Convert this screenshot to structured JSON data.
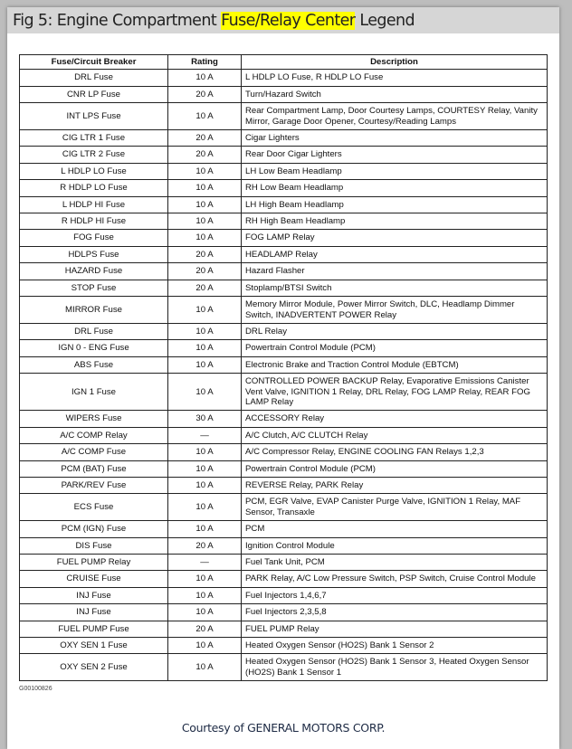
{
  "title": {
    "before": "Fig 5: Engine Compartment ",
    "highlight": "Fuse/Relay Center",
    "after": " Legend",
    "highlight_color": "#ffff00"
  },
  "table": {
    "headers": [
      "Fuse/Circuit Breaker",
      "Rating",
      "Description"
    ],
    "rows": [
      [
        "DRL Fuse",
        "10 A",
        "L HDLP LO Fuse, R HDLP LO Fuse"
      ],
      [
        "CNR LP Fuse",
        "20 A",
        "Turn/Hazard Switch"
      ],
      [
        "INT LPS Fuse",
        "10 A",
        "Rear Compartment Lamp, Door Courtesy Lamps, COURTESY Relay, Vanity Mirror, Garage Door Opener, Courtesy/Reading Lamps"
      ],
      [
        "CIG LTR 1 Fuse",
        "20 A",
        "Cigar Lighters"
      ],
      [
        "CIG LTR 2 Fuse",
        "20 A",
        "Rear Door Cigar Lighters"
      ],
      [
        "L HDLP LO Fuse",
        "10 A",
        "LH Low Beam Headlamp"
      ],
      [
        "R HDLP LO Fuse",
        "10 A",
        "RH Low Beam Headlamp"
      ],
      [
        "L HDLP HI Fuse",
        "10 A",
        "LH High Beam Headlamp"
      ],
      [
        "R HDLP HI Fuse",
        "10 A",
        "RH High Beam Headlamp"
      ],
      [
        "FOG Fuse",
        "10 A",
        "FOG LAMP Relay"
      ],
      [
        "HDLPS Fuse",
        "20 A",
        "HEADLAMP Relay"
      ],
      [
        "HAZARD Fuse",
        "20 A",
        "Hazard Flasher"
      ],
      [
        "STOP Fuse",
        "20 A",
        "Stoplamp/BTSI Switch"
      ],
      [
        "MIRROR Fuse",
        "10 A",
        "Memory Mirror Module, Power Mirror Switch, DLC, Headlamp Dimmer Switch, INADVERTENT POWER Relay"
      ],
      [
        "DRL Fuse",
        "10 A",
        "DRL Relay"
      ],
      [
        "IGN 0 - ENG Fuse",
        "10 A",
        "Powertrain Control Module (PCM)"
      ],
      [
        "ABS Fuse",
        "10 A",
        "Electronic Brake and Traction Control Module (EBTCM)"
      ],
      [
        "IGN 1 Fuse",
        "10 A",
        "CONTROLLED POWER BACKUP Relay, Evaporative Emissions Canister Vent Valve, IGNITION 1 Relay, DRL Relay, FOG LAMP Relay, REAR FOG LAMP Relay"
      ],
      [
        "WIPERS Fuse",
        "30 A",
        "ACCESSORY Relay"
      ],
      [
        "A/C COMP Relay",
        "—",
        "A/C Clutch, A/C CLUTCH Relay"
      ],
      [
        "A/C COMP Fuse",
        "10 A",
        "A/C Compressor Relay, ENGINE COOLING FAN Relays 1,2,3"
      ],
      [
        "PCM (BAT) Fuse",
        "10 A",
        "Powertrain Control Module (PCM)"
      ],
      [
        "PARK/REV Fuse",
        "10 A",
        "REVERSE Relay, PARK Relay"
      ],
      [
        "ECS Fuse",
        "10 A",
        "PCM, EGR Valve, EVAP Canister Purge Valve, IGNITION 1 Relay, MAF Sensor, Transaxle"
      ],
      [
        "PCM (IGN) Fuse",
        "10 A",
        "PCM"
      ],
      [
        "DIS Fuse",
        "20 A",
        "Ignition Control Module"
      ],
      [
        "FUEL PUMP Relay",
        "—",
        "Fuel Tank Unit, PCM"
      ],
      [
        "CRUISE Fuse",
        "10 A",
        "PARK Relay, A/C Low Pressure Switch, PSP Switch, Cruise Control Module"
      ],
      [
        "INJ Fuse",
        "10 A",
        "Fuel Injectors 1,4,6,7"
      ],
      [
        "INJ Fuse",
        "10 A",
        "Fuel Injectors 2,3,5,8"
      ],
      [
        "FUEL PUMP Fuse",
        "20 A",
        "FUEL PUMP Relay"
      ],
      [
        "OXY SEN 1 Fuse",
        "10 A",
        "Heated Oxygen Sensor (HO2S) Bank 1 Sensor 2"
      ],
      [
        "OXY SEN 2 Fuse",
        "10 A",
        "Heated Oxygen Sensor (HO2S) Bank 1 Sensor 3, Heated Oxygen Sensor (HO2S) Bank 1 Sensor 1"
      ]
    ]
  },
  "figure_code": "G00100826",
  "courtesy": "Courtesy of GENERAL MOTORS CORP."
}
